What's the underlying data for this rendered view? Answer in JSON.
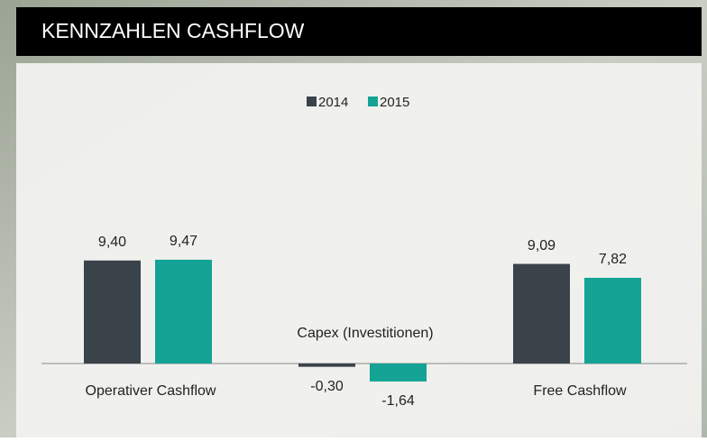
{
  "chart_data": {
    "type": "bar",
    "title": "KENNZAHLEN CASHFLOW",
    "categories": [
      "Operativer Cashflow",
      "Capex (Investitionen)",
      "Free Cashflow"
    ],
    "series": [
      {
        "name": "2014",
        "color": "#3a424a",
        "values": [
          9.4,
          -0.3,
          9.09
        ],
        "value_labels": [
          "9,40",
          "-0,30",
          "9,09"
        ]
      },
      {
        "name": "2015",
        "color": "#14a394",
        "values": [
          9.47,
          -1.64,
          7.82
        ],
        "value_labels": [
          "9,47",
          "-1,64",
          "7,82"
        ]
      }
    ],
    "ylim": [
      -4,
      14
    ],
    "legend": "top"
  }
}
